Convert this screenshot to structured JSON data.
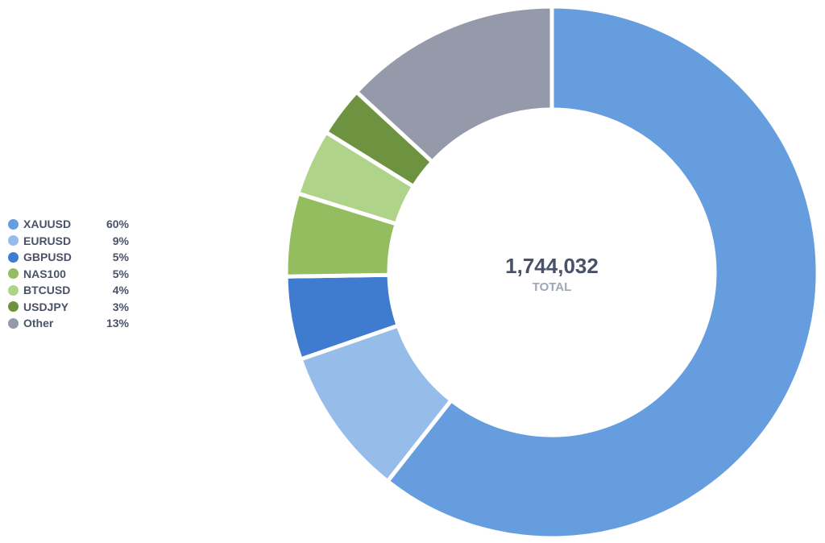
{
  "chart_data": {
    "type": "pie",
    "variant": "donut",
    "categories": [
      "XAUUSD",
      "EURUSD",
      "GBPUSD",
      "NAS100",
      "BTCUSD",
      "USDJPY",
      "Other"
    ],
    "values": [
      60,
      9,
      5,
      5,
      4,
      3,
      13
    ],
    "value_labels": [
      "60%",
      "9%",
      "5%",
      "5%",
      "4%",
      "3%",
      "13%"
    ],
    "colors": [
      "#669ddf",
      "#96bde9",
      "#3f7bce",
      "#93bd5f",
      "#b0d38a",
      "#6e9340",
      "#959aaa"
    ],
    "legend_position": "left",
    "center": {
      "total": "1,744,032",
      "caption": "TOTAL"
    }
  }
}
